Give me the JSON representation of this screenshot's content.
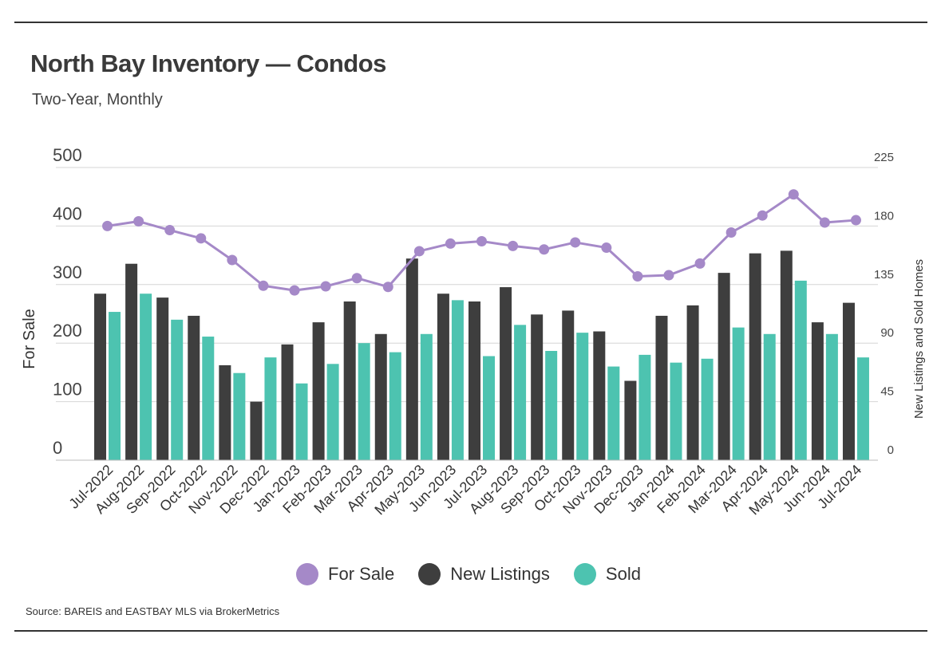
{
  "header": {
    "title": "North Bay Inventory — Condos",
    "subtitle": "Two-Year, Monthly"
  },
  "source": "Source:  BAREIS and EASTBAY MLS via BrokerMetrics",
  "legend": [
    {
      "label": "For Sale",
      "color": "#a589c8"
    },
    {
      "label": "New Listings",
      "color": "#3e3e3e"
    },
    {
      "label": "Sold",
      "color": "#4dc3b0"
    }
  ],
  "chart_data": {
    "type": "bar",
    "title": "North Bay Inventory — Condos",
    "subtitle": "Two-Year, Monthly",
    "ylabel": "For Sale",
    "y2label": "New Listings and Sold Homes",
    "ylim": [
      0,
      500
    ],
    "y2lim": [
      0,
      225
    ],
    "yticks": [
      "0",
      "100",
      "200",
      "300",
      "400",
      "500"
    ],
    "y2ticks": [
      "0",
      "45",
      "90",
      "135",
      "180",
      "225"
    ],
    "grid": true,
    "legend_position": "bottom",
    "categories": [
      "Jul-2022",
      "Aug-2022",
      "Sep-2022",
      "Oct-2022",
      "Nov-2022",
      "Dec-2022",
      "Jan-2023",
      "Feb-2023",
      "Mar-2023",
      "Apr-2023",
      "May-2023",
      "Jun-2023",
      "Jul-2023",
      "Aug-2023",
      "Sep-2023",
      "Oct-2023",
      "Nov-2023",
      "Dec-2023",
      "Jan-2024",
      "Feb-2024",
      "Mar-2024",
      "Apr-2024",
      "May-2024",
      "Jun-2024",
      "Jul-2024"
    ],
    "series": [
      {
        "name": "For Sale",
        "kind": "line",
        "axis": "left",
        "color": "#a589c8",
        "values": [
          400,
          408,
          393,
          379,
          342,
          298,
          290,
          297,
          311,
          296,
          357,
          370,
          374,
          366,
          360,
          372,
          363,
          314,
          316,
          336,
          389,
          418,
          454,
          406,
          410
        ]
      },
      {
        "name": "New Listings",
        "kind": "bar",
        "axis": "right",
        "color": "#3e3e3e",
        "values": [
          128,
          151,
          125,
          111,
          73,
          45,
          89,
          106,
          122,
          97,
          155,
          128,
          122,
          133,
          112,
          115,
          99,
          61,
          111,
          119,
          144,
          159,
          161,
          106,
          121
        ]
      },
      {
        "name": "Sold",
        "kind": "bar",
        "axis": "right",
        "color": "#4dc3b0",
        "values": [
          114,
          128,
          108,
          95,
          67,
          79,
          59,
          74,
          90,
          83,
          97,
          123,
          80,
          104,
          84,
          98,
          72,
          81,
          75,
          78,
          102,
          97,
          138,
          97,
          79
        ]
      }
    ]
  }
}
